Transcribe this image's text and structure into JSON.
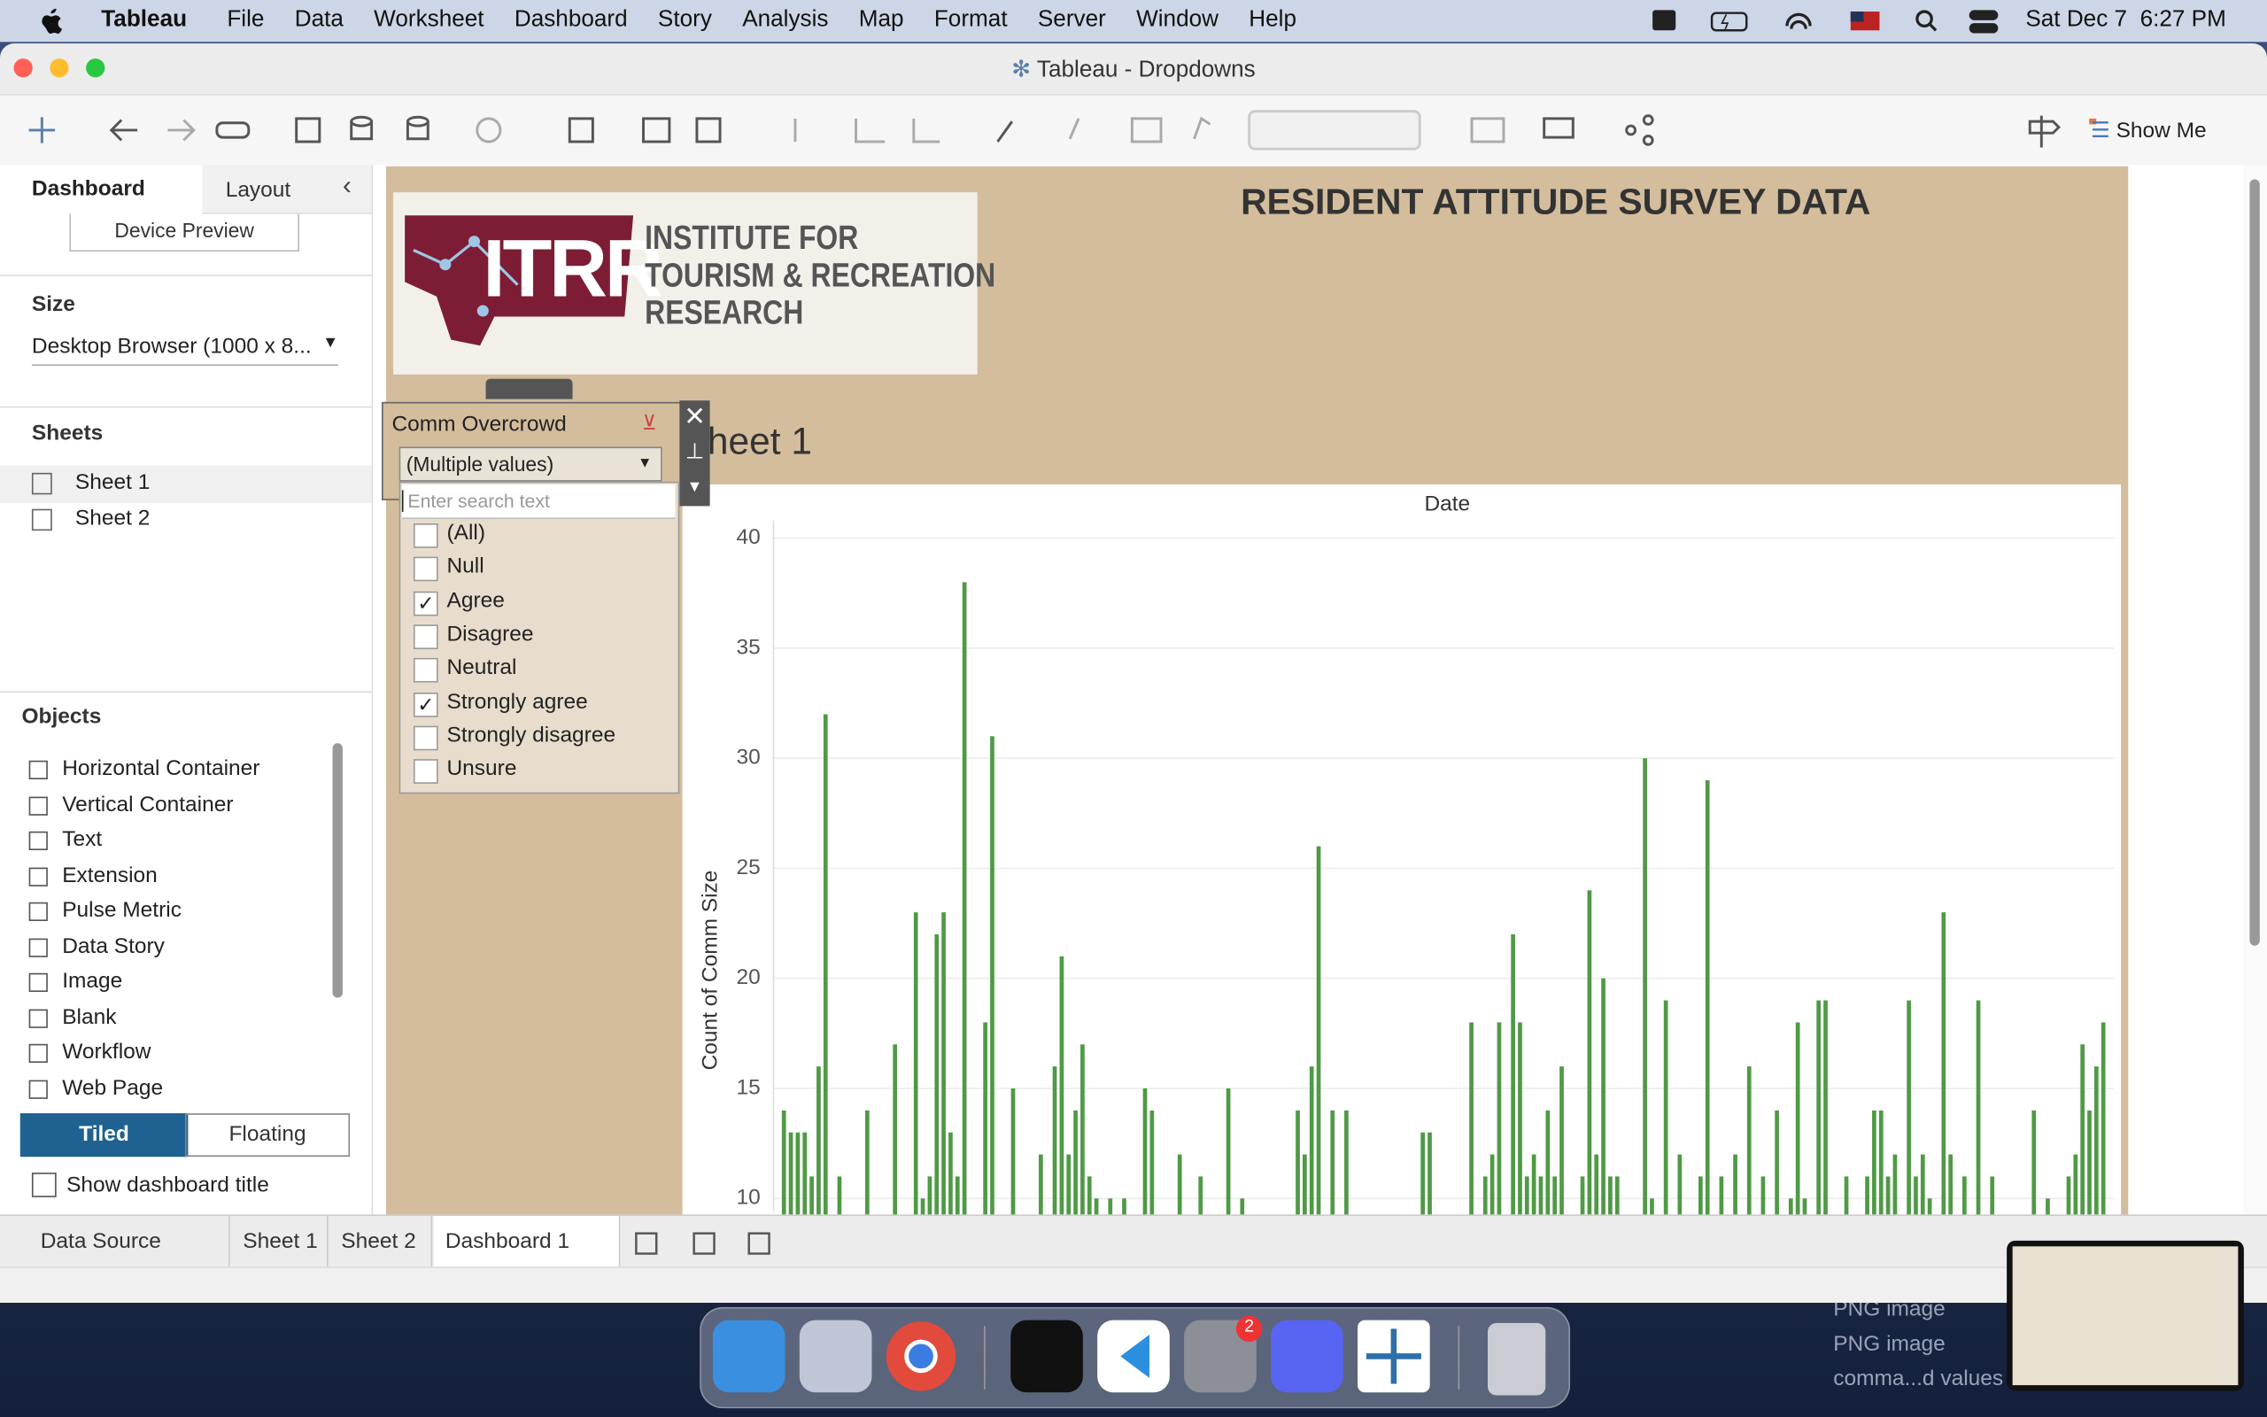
{
  "menu_bar": {
    "app": "Tableau",
    "items": [
      "File",
      "Data",
      "Worksheet",
      "Dashboard",
      "Story",
      "Analysis",
      "Map",
      "Format",
      "Server",
      "Window",
      "Help"
    ],
    "clock": "Sat Dec 7  6:27 PM"
  },
  "window": {
    "title": "Tableau - Dropdowns"
  },
  "toolbar": {
    "show_me": "Show Me"
  },
  "sidebar": {
    "tabs": [
      "Dashboard",
      "Layout"
    ],
    "device_preview": "Device Preview",
    "size_label": "Size",
    "size_value": "Desktop Browser (1000 x 8...",
    "sheets_label": "Sheets",
    "sheets": [
      "Sheet 1",
      "Sheet 2"
    ],
    "objects_label": "Objects",
    "objects": [
      "Horizontal Container",
      "Vertical Container",
      "Text",
      "Extension",
      "Pulse Metric",
      "Data Story",
      "Image",
      "Blank",
      "Workflow",
      "Web Page"
    ],
    "layout_modes": [
      "Tiled",
      "Floating"
    ],
    "show_title": "Show dashboard title"
  },
  "dashboard": {
    "title": "RESIDENT ATTITUDE SURVEY DATA",
    "logo": {
      "mark": "ITRR",
      "lines": [
        "INSTITUTE FOR",
        "TOURISM & RECREATION",
        "RESEARCH"
      ]
    },
    "sheet_title": "Sheet 1"
  },
  "filter": {
    "title": "Comm Overcrowd",
    "value": "(Multiple values)",
    "search_placeholder": "Enter search text",
    "options": [
      {
        "label": "(All)",
        "checked": false
      },
      {
        "label": "Null",
        "checked": false
      },
      {
        "label": "Agree",
        "checked": true
      },
      {
        "label": "Disagree",
        "checked": false
      },
      {
        "label": "Neutral",
        "checked": false
      },
      {
        "label": "Strongly agree",
        "checked": true
      },
      {
        "label": "Strongly disagree",
        "checked": false
      },
      {
        "label": "Unsure",
        "checked": false
      }
    ]
  },
  "chart_data": {
    "type": "bar",
    "x_label": "Date",
    "y_label": "Count of Comm Size",
    "color": "#4f9a45",
    "grid": true,
    "ylim": [
      9.4,
      40.8
    ],
    "yticks": [
      10,
      15,
      20,
      25,
      30,
      35,
      40
    ],
    "values": [
      null,
      14,
      13,
      13,
      13,
      11,
      16,
      32,
      null,
      11,
      null,
      null,
      null,
      14,
      null,
      null,
      null,
      17,
      null,
      null,
      23,
      10,
      11,
      22,
      23,
      13,
      11,
      38,
      null,
      null,
      18,
      31,
      null,
      null,
      15,
      null,
      null,
      null,
      12,
      null,
      16,
      21,
      12,
      14,
      17,
      11,
      10,
      null,
      10,
      null,
      10,
      null,
      null,
      15,
      14,
      null,
      null,
      null,
      12,
      null,
      null,
      11,
      null,
      null,
      null,
      15,
      null,
      10,
      null,
      null,
      null,
      null,
      null,
      null,
      null,
      14,
      12,
      16,
      26,
      null,
      14,
      null,
      14,
      null,
      null,
      null,
      null,
      null,
      null,
      null,
      null,
      null,
      null,
      13,
      13,
      null,
      null,
      null,
      null,
      null,
      18,
      null,
      11,
      12,
      18,
      null,
      22,
      18,
      11,
      12,
      11,
      14,
      11,
      16,
      null,
      null,
      11,
      24,
      12,
      20,
      11,
      11,
      null,
      null,
      null,
      30,
      10,
      null,
      19,
      null,
      12,
      null,
      null,
      11,
      29,
      null,
      11,
      null,
      12,
      null,
      16,
      null,
      11,
      null,
      14,
      null,
      10,
      18,
      10,
      null,
      19,
      19,
      null,
      null,
      11,
      null,
      null,
      11,
      14,
      14,
      11,
      12,
      null,
      19,
      11,
      12,
      10,
      null,
      23,
      12,
      null,
      11,
      null,
      19,
      null,
      11,
      null,
      null,
      null,
      null,
      null,
      14,
      null,
      10,
      null,
      null,
      11,
      12,
      17,
      14,
      16,
      18,
      null
    ]
  },
  "sheet_tabs": [
    "Data Source",
    "Sheet 1",
    "Sheet 2",
    "Dashboard 1"
  ],
  "dock": {
    "badge": 2
  },
  "desktop": {
    "files": [
      "PNG image",
      "PNG image",
      "comma...d values"
    ]
  }
}
